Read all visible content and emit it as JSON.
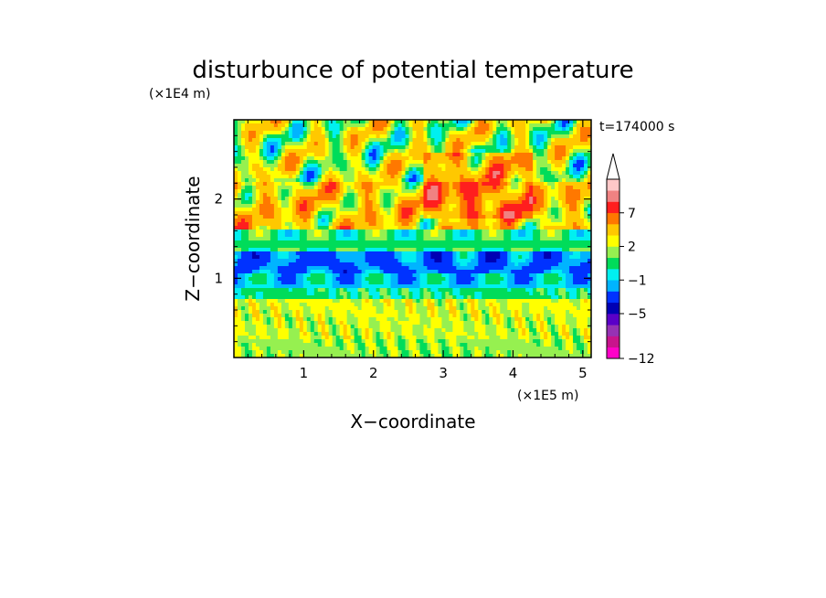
{
  "chart_data": {
    "type": "heatmap",
    "title": "disturbunce of potential temperature",
    "time_label": "t=174000 s",
    "xlabel": "X−coordinate",
    "ylabel": "Z−coordinate",
    "x_unit": "(×1E5 m)",
    "y_unit": "(×1E4 m)",
    "x_range": [
      0,
      5.12
    ],
    "y_range": [
      0,
      3.0
    ],
    "x_ticks": [
      {
        "value": 1,
        "label": "1"
      },
      {
        "value": 2,
        "label": "2"
      },
      {
        "value": 3,
        "label": "3"
      },
      {
        "value": 4,
        "label": "4"
      },
      {
        "value": 5,
        "label": "5"
      }
    ],
    "y_ticks": [
      {
        "value": 1,
        "label": "1"
      },
      {
        "value": 2,
        "label": "2"
      }
    ],
    "colorbar": {
      "levels": [
        {
          "value": -12,
          "color": "#ff00c8"
        },
        {
          "value": -10,
          "color": "#c8148c"
        },
        {
          "value": -8,
          "color": "#9632b4"
        },
        {
          "value": -6,
          "color": "#5a00c8"
        },
        {
          "value": -5,
          "color": "#0000b4"
        },
        {
          "value": -4,
          "color": "#0032ff"
        },
        {
          "value": -2,
          "color": "#00b4ff"
        },
        {
          "value": -1,
          "color": "#00f0f0"
        },
        {
          "value": 0,
          "color": "#00dc5a"
        },
        {
          "value": 1,
          "color": "#96f050"
        },
        {
          "value": 2,
          "color": "#ffff00"
        },
        {
          "value": 3,
          "color": "#ffc800"
        },
        {
          "value": 5,
          "color": "#ff7800"
        },
        {
          "value": 7,
          "color": "#ff1e1e"
        },
        {
          "value": 9,
          "color": "#f08282"
        },
        {
          "value": 11,
          "color": "#ffc8c8"
        }
      ],
      "tick_labels": [
        {
          "value": -12,
          "label": "−12"
        },
        {
          "value": -5,
          "label": "−5"
        },
        {
          "value": -1,
          "label": "−1"
        },
        {
          "value": 2,
          "label": "2"
        },
        {
          "value": 7,
          "label": "7"
        }
      ],
      "extend": "max"
    },
    "field_layers": [
      {
        "z": [
          0.0,
          0.22
        ],
        "theta_mean": 1.5
      },
      {
        "z": [
          0.22,
          0.5
        ],
        "theta_mean": 2.0
      },
      {
        "z": [
          0.5,
          0.72
        ],
        "theta_mean": 2.2
      },
      {
        "z": [
          0.72,
          0.88
        ],
        "theta_mean": 0.3
      },
      {
        "z": [
          0.88,
          1.08
        ],
        "theta_mean": -1.0
      },
      {
        "z": [
          1.08,
          1.35
        ],
        "theta_mean": -1.5
      },
      {
        "z": [
          1.35,
          1.6
        ],
        "theta_mean": 0.5
      },
      {
        "z": [
          1.6,
          2.2
        ],
        "theta_mean": 3.5
      },
      {
        "z": [
          2.2,
          3.0
        ],
        "theta_mean": 2.0
      }
    ]
  }
}
